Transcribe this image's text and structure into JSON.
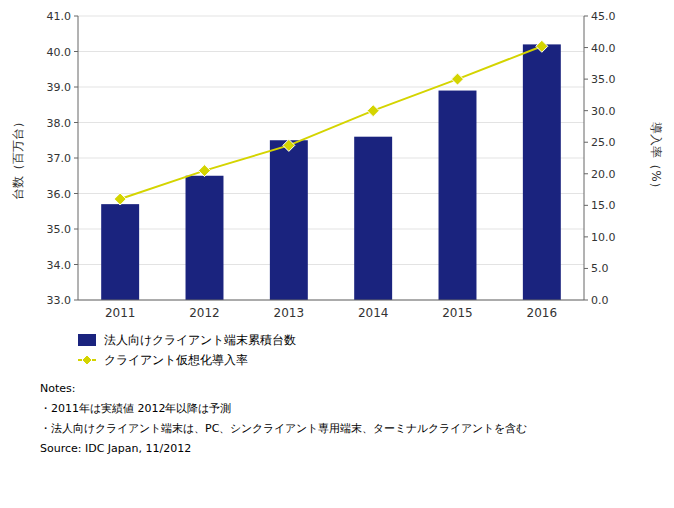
{
  "chart_data": {
    "type": "bar",
    "categories": [
      "2011",
      "2012",
      "2013",
      "2014",
      "2015",
      "2016"
    ],
    "ylabel": "台数（百万台）",
    "y2label": "導入率（%）",
    "ylim": [
      33.0,
      41.0
    ],
    "yticks": [
      {
        "value": 33.0,
        "label": "33.0"
      },
      {
        "value": 34.0,
        "label": "34.0"
      },
      {
        "value": 35.0,
        "label": "35.0"
      },
      {
        "value": 36.0,
        "label": "36.0"
      },
      {
        "value": 37.0,
        "label": "37.0"
      },
      {
        "value": 38.0,
        "label": "38.0"
      },
      {
        "value": 39.0,
        "label": "39.0"
      },
      {
        "value": 40.0,
        "label": "40.0"
      },
      {
        "value": 41.0,
        "label": "41.0"
      }
    ],
    "y2lim": [
      0.0,
      45.0
    ],
    "y2ticks": [
      {
        "value": 0.0,
        "label": "0.0"
      },
      {
        "value": 5.0,
        "label": "5.0"
      },
      {
        "value": 10.0,
        "label": "10.0"
      },
      {
        "value": 15.0,
        "label": "15.0"
      },
      {
        "value": 20.0,
        "label": "20.0"
      },
      {
        "value": 25.0,
        "label": "25.0"
      },
      {
        "value": 30.0,
        "label": "30.0"
      },
      {
        "value": 35.0,
        "label": "35.0"
      },
      {
        "value": 40.0,
        "label": "40.0"
      },
      {
        "value": 45.0,
        "label": "45.0"
      }
    ],
    "grid": true,
    "legend": "bottom",
    "series": [
      {
        "name": "法人向けクライアント端末累積台数",
        "type": "bar",
        "color": "#1a237e",
        "values": [
          35.7,
          36.5,
          37.5,
          37.6,
          38.9,
          40.2
        ]
      },
      {
        "name": "クライアント仮想化導入率",
        "type": "line",
        "axis": "y2",
        "color": "#d4d400",
        "marker": "diamond",
        "values": [
          16.0,
          20.5,
          24.5,
          30.0,
          35.0,
          40.2
        ]
      }
    ],
    "annotations": [
      "Notes:",
      "・2011年は実績値  2012年以降は予測",
      "・法人向けクライアント端末は、PC、シンクライアント専用端末、ターミナルクライアントを含む",
      "Source: IDC Japan, 11/2012"
    ]
  }
}
